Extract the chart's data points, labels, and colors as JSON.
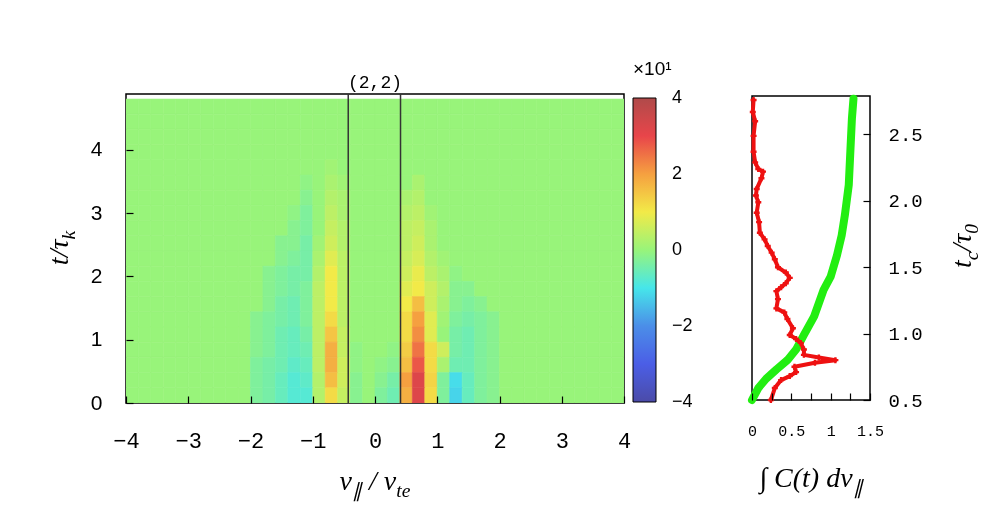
{
  "chart_data": [
    {
      "type": "heatmap",
      "title": "(2,2)",
      "xlabel": "v$_{∥}$ / v$_{te}$",
      "ylabel": "t/τ$_{k}$",
      "clabel": "×10¹",
      "x": [
        -3.9,
        -3.7,
        -3.5,
        -3.3,
        -3.1,
        -2.9,
        -2.7,
        -2.5,
        -2.3,
        -2.1,
        -1.9,
        -1.7,
        -1.5,
        -1.3,
        -1.1,
        -0.9,
        -0.7,
        -0.5,
        -0.3,
        -0.1,
        0.1,
        0.3,
        0.5,
        0.7,
        0.9,
        1.1,
        1.3,
        1.5,
        1.7,
        1.9,
        2.1,
        2.3,
        2.5,
        2.7,
        2.9,
        3.1,
        3.3,
        3.5,
        3.7,
        3.9
      ],
      "y": [
        4.68,
        4.44,
        4.2,
        3.96,
        3.72,
        3.48,
        3.24,
        3,
        2.76,
        2.52,
        2.28,
        2.04,
        1.8,
        1.56,
        1.32,
        1.08,
        0.84,
        0.6,
        0.36,
        0.12
      ],
      "cells": [
        [
          0,
          0,
          0,
          0,
          0,
          0,
          0,
          0,
          0,
          0,
          0,
          0,
          0,
          0,
          0,
          0,
          0,
          0,
          0,
          0,
          0,
          0,
          0,
          0,
          0,
          0,
          0,
          0,
          0,
          0,
          0,
          0,
          0,
          0,
          0,
          0,
          0,
          0,
          0,
          0
        ],
        [
          0,
          0,
          0,
          0,
          0,
          0,
          0,
          0,
          0,
          0,
          0,
          0,
          0,
          0,
          0,
          0,
          0,
          0,
          0,
          0,
          0,
          0,
          0,
          0,
          0,
          0,
          0,
          0,
          0,
          0,
          0,
          0,
          0,
          0,
          0,
          0,
          0,
          0,
          0,
          0
        ],
        [
          0,
          0,
          0,
          0,
          0,
          0,
          0,
          0,
          0,
          0,
          0,
          0,
          0,
          0,
          0,
          0,
          0,
          0,
          0,
          0,
          0,
          0,
          0,
          0,
          0,
          0,
          0,
          0,
          0,
          0,
          0,
          0,
          0,
          0,
          0,
          0,
          0,
          0,
          0,
          0
        ],
        [
          0,
          0,
          0,
          0,
          0,
          0,
          0,
          0,
          0,
          0,
          0,
          0,
          0,
          0,
          0,
          0,
          0,
          0,
          0,
          0,
          0,
          0,
          0,
          0,
          0,
          0,
          0,
          0,
          0,
          0,
          0,
          0,
          0,
          0,
          0,
          0,
          0,
          0,
          0,
          0
        ],
        [
          0,
          0,
          0,
          0,
          0,
          0,
          0,
          0,
          0,
          0,
          0,
          0,
          0,
          0,
          0,
          0,
          0.1,
          0,
          0,
          0,
          0,
          0,
          0,
          0,
          0,
          0,
          0,
          0,
          0,
          0,
          0,
          0,
          0,
          0,
          0,
          0,
          0,
          0,
          0,
          0
        ],
        [
          0,
          0,
          0,
          0,
          0,
          0,
          0,
          0,
          0,
          0,
          0,
          0,
          0,
          0,
          -0.1,
          0,
          0.2,
          0.1,
          0,
          0,
          0,
          0,
          0,
          0.2,
          0,
          0,
          0,
          0,
          0,
          0,
          0,
          0,
          0,
          0,
          0,
          0,
          0,
          0,
          0,
          0
        ],
        [
          0,
          0,
          0,
          0,
          0,
          0,
          0,
          0,
          0,
          0,
          0,
          0,
          0,
          0,
          -0.2,
          0,
          0.3,
          0.2,
          0,
          0,
          0,
          0,
          0.2,
          0.3,
          0,
          0,
          0,
          0,
          0,
          0,
          0,
          0,
          0,
          0,
          0,
          0,
          0,
          0,
          0,
          0
        ],
        [
          0,
          0,
          0,
          0,
          0,
          0,
          0,
          0,
          0,
          0,
          0,
          0,
          0,
          -0.1,
          -0.3,
          0,
          0.4,
          0.2,
          0,
          0,
          0,
          0,
          0.3,
          0.4,
          0.1,
          0,
          0,
          0,
          0,
          0,
          0,
          0,
          0,
          0,
          0,
          0,
          0,
          0,
          0,
          0
        ],
        [
          0,
          0,
          0,
          0,
          0,
          0,
          0,
          0,
          0,
          0,
          0,
          0,
          0,
          -0.2,
          -0.3,
          0,
          0.5,
          0.3,
          0,
          0,
          0,
          0,
          0.4,
          0.5,
          0.2,
          0,
          0,
          0,
          0,
          0,
          0,
          0,
          0,
          0,
          0,
          0,
          0,
          0,
          0,
          0
        ],
        [
          0,
          0,
          0,
          0,
          0,
          0,
          0,
          0,
          0,
          0,
          0,
          0,
          -0.2,
          -0.2,
          -0.4,
          0.1,
          0.6,
          0.3,
          0,
          0,
          0,
          0,
          0.4,
          0.6,
          0.2,
          0,
          0,
          0,
          0,
          0,
          0,
          0,
          0,
          0,
          0,
          0,
          0,
          0,
          0,
          0
        ],
        [
          0,
          0,
          0,
          0,
          0,
          0,
          0,
          0,
          0,
          0,
          0,
          0,
          -0.2,
          -0.3,
          -0.4,
          0.2,
          0.8,
          0.4,
          0,
          0,
          0,
          0,
          0.5,
          0.7,
          0.3,
          0.1,
          0,
          0,
          0,
          0,
          0,
          0,
          0,
          0,
          0,
          0,
          0,
          0,
          0,
          0
        ],
        [
          0,
          0,
          0,
          0,
          0,
          0,
          0,
          0,
          0,
          0,
          0,
          -0.2,
          -0.3,
          -0.4,
          -0.4,
          0.3,
          1,
          0.4,
          0,
          0,
          0,
          0,
          0.6,
          0.9,
          0.4,
          0.2,
          -0.1,
          0,
          0,
          0,
          0,
          0,
          0,
          0,
          0,
          0,
          0,
          0,
          0,
          0
        ],
        [
          0,
          0,
          0,
          0,
          0,
          0,
          0,
          0,
          0,
          0,
          0,
          -0.2,
          -0.3,
          -0.4,
          -0.3,
          0.4,
          1,
          0.4,
          0,
          0,
          0,
          0,
          0.8,
          1,
          0.6,
          0.3,
          -0.2,
          -0.2,
          0,
          0,
          0,
          0,
          0,
          0,
          0,
          0,
          0,
          0,
          0,
          0
        ],
        [
          0,
          0,
          0,
          0,
          0,
          0,
          0,
          0,
          0,
          0,
          0,
          -0.2,
          -0.4,
          -0.5,
          -0.3,
          0.4,
          1,
          0.4,
          0,
          0,
          0,
          0,
          1,
          1.6,
          0.6,
          0.2,
          -0.2,
          -0.3,
          -0.2,
          0,
          0,
          0,
          0,
          0,
          0,
          0,
          0,
          0,
          0,
          0
        ],
        [
          0,
          0,
          0,
          0,
          0,
          0,
          0,
          0,
          0,
          0,
          -0.2,
          -0.3,
          -0.4,
          -0.5,
          -0.3,
          0.4,
          1.2,
          0.4,
          0,
          0,
          0,
          0,
          1.2,
          2,
          0.8,
          0.1,
          -0.3,
          -0.4,
          -0.3,
          -0.2,
          0,
          0,
          0,
          0,
          0,
          0,
          0,
          0,
          0,
          0
        ],
        [
          0,
          0,
          0,
          0,
          0,
          0,
          0,
          0,
          0,
          0,
          -0.2,
          -0.3,
          -0.5,
          -0.6,
          -0.4,
          0.4,
          1.5,
          0.5,
          0,
          0,
          0,
          0,
          1.2,
          2.2,
          0.8,
          0,
          -0.4,
          -0.5,
          -0.3,
          -0.2,
          0,
          0,
          0,
          0,
          0,
          0,
          0,
          0,
          0,
          0
        ],
        [
          0,
          0,
          0,
          0,
          0,
          0,
          0,
          0,
          0,
          0,
          -0.2,
          -0.3,
          -0.5,
          -0.6,
          -0.5,
          0.4,
          1.8,
          0.5,
          -0.1,
          0,
          0,
          -0.1,
          1.4,
          2.5,
          1.2,
          0.6,
          -0.4,
          -0.5,
          -0.3,
          -0.2,
          0,
          0,
          0,
          0,
          0,
          0,
          0,
          0,
          0,
          0
        ],
        [
          0,
          0,
          0,
          0,
          0,
          0,
          0,
          0,
          0,
          0,
          -0.3,
          -0.4,
          -0.5,
          -0.7,
          -0.6,
          0.4,
          1.8,
          0.6,
          -0.1,
          0,
          -0.1,
          -0.2,
          1.6,
          2.8,
          1.2,
          0.2,
          -0.5,
          -0.5,
          -0.3,
          -0.2,
          0,
          0,
          0,
          0,
          0,
          0,
          0,
          0,
          0,
          0
        ],
        [
          0,
          0,
          0,
          0,
          0,
          0,
          0,
          0,
          0,
          0,
          -0.3,
          -0.4,
          -0.6,
          -0.8,
          -0.7,
          0.3,
          1.6,
          0.6,
          -0.2,
          0,
          -0.2,
          -0.4,
          2,
          3.2,
          1.3,
          -0.3,
          -1.1,
          -0.6,
          -0.3,
          -0.2,
          0,
          0,
          0,
          0,
          0,
          0,
          0,
          0,
          0,
          0
        ],
        [
          0,
          0,
          0,
          0,
          0,
          0,
          0,
          0,
          0,
          0,
          -0.3,
          -0.4,
          -0.6,
          -0.8,
          -0.8,
          0.3,
          1.2,
          0.5,
          -0.2,
          0,
          -0.3,
          -0.5,
          1.8,
          3.2,
          1.2,
          -0.3,
          -1.2,
          -0.6,
          -0.3,
          -0.2,
          0,
          0,
          0,
          0,
          0,
          0,
          0,
          0,
          0,
          0
        ]
      ],
      "xlim": [
        -4,
        4
      ],
      "xticks": [
        -4,
        -3,
        -2,
        -1,
        0,
        1,
        2,
        3,
        4
      ],
      "ylim": [
        0,
        4.88
      ],
      "yticks": [
        0,
        1,
        2,
        3,
        4
      ],
      "clim": [
        -4,
        4
      ],
      "cticks": [
        -4,
        -2,
        0,
        2,
        4
      ],
      "ref_lines": [
        {
          "axis": "x",
          "value": -0.43,
          "color": "#333333"
        },
        {
          "axis": "x",
          "value": 0.41,
          "color": "#333333"
        }
      ]
    },
    {
      "type": "line",
      "xlabel": "∫ C(t) dv$_{∥}$",
      "y2label": "t$_{c}$/τ$_{0}$",
      "xlim": [
        0,
        1.5
      ],
      "xticks": [
        0,
        {
          "value": 0.25,
          "label": null
        },
        0.5,
        {
          "value": 0.75,
          "label": null
        },
        1,
        {
          "value": 1.25,
          "label": null
        },
        1.5
      ],
      "y2lim": [
        0.5,
        2.79
      ],
      "y2ticks": [
        0.5,
        {
          "value": 1,
          "label": "1.0"
        },
        1.5,
        {
          "value": 2,
          "label": "2.0"
        },
        2.5
      ],
      "series": [
        {
          "color": "#22ee11",
          "axis": "y2",
          "x": [
            0,
            0.08,
            0.18,
            0.31,
            0.45,
            0.56,
            0.66,
            0.79,
            0.91,
            1.0,
            1.08,
            1.14,
            1.18,
            1.23,
            1.25,
            1.27,
            1.29
          ],
          "values": [
            0.5,
            0.59,
            0.66,
            0.73,
            0.8,
            0.88,
            0.99,
            1.13,
            1.33,
            1.43,
            1.59,
            1.74,
            1.89,
            2.12,
            2.37,
            2.62,
            2.77
          ]
        },
        {
          "color": "#ee1111",
          "axis": "y2",
          "marker": "cross",
          "x": [
            0.24,
            0.29,
            0.37,
            0.48,
            0.56,
            0.54,
            0.8,
            1.06,
            0.85,
            0.66,
            0.66,
            0.62,
            0.56,
            0.48,
            0.52,
            0.45,
            0.41,
            0.31,
            0.33,
            0.31,
            0.37,
            0.43,
            0.48,
            0.43,
            0.33,
            0.29,
            0.25,
            0.2,
            0.16,
            0.1,
            0.09,
            0.06,
            0.08,
            0.05,
            0.06,
            0.12,
            0.14,
            0.08,
            0.04,
            0.02,
            0.02,
            0.04,
            0.01,
            0.02
          ],
          "values": [
            0.5,
            0.59,
            0.65,
            0.68,
            0.71,
            0.75,
            0.78,
            0.8,
            0.82,
            0.84,
            0.88,
            0.93,
            0.96,
            0.99,
            1.04,
            1.11,
            1.16,
            1.19,
            1.26,
            1.32,
            1.35,
            1.38,
            1.42,
            1.46,
            1.5,
            1.56,
            1.61,
            1.66,
            1.71,
            1.76,
            1.84,
            1.91,
            1.99,
            2.04,
            2.09,
            2.17,
            2.22,
            2.24,
            2.29,
            2.37,
            2.49,
            2.6,
            2.67,
            2.76
          ]
        }
      ]
    }
  ]
}
